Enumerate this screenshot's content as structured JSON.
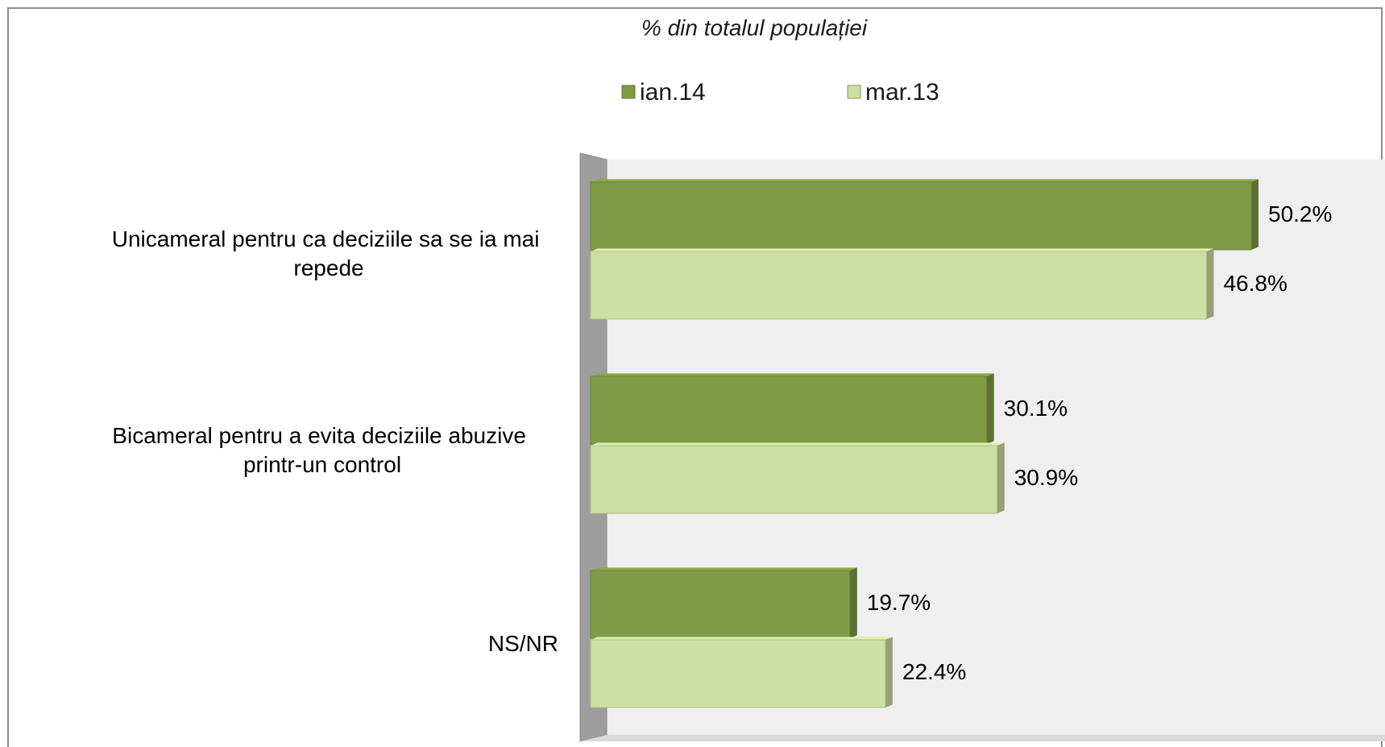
{
  "chart_data": {
    "type": "bar",
    "orientation": "horizontal",
    "title": "% din totalul populației",
    "categories": [
      [
        "Unicameral pentru ca deciziile sa se ia mai",
        "repede"
      ],
      [
        "Bicameral pentru a evita deciziile abuzive",
        "printr-un control"
      ],
      [
        "NS/NR"
      ]
    ],
    "series": [
      {
        "name": "ian.14",
        "values": [
          50.2,
          30.1,
          19.7
        ],
        "labels": [
          "50.2%",
          "30.1%",
          "19.7%"
        ],
        "color": "#7f9b45"
      },
      {
        "name": "mar.13",
        "values": [
          46.8,
          30.9,
          22.4
        ],
        "labels": [
          "46.8%",
          "30.9%",
          "22.4%"
        ],
        "color": "#cddfa3"
      }
    ],
    "xlim": [
      0,
      60
    ],
    "grid": false,
    "legend_position": "top",
    "style_3d": true
  }
}
